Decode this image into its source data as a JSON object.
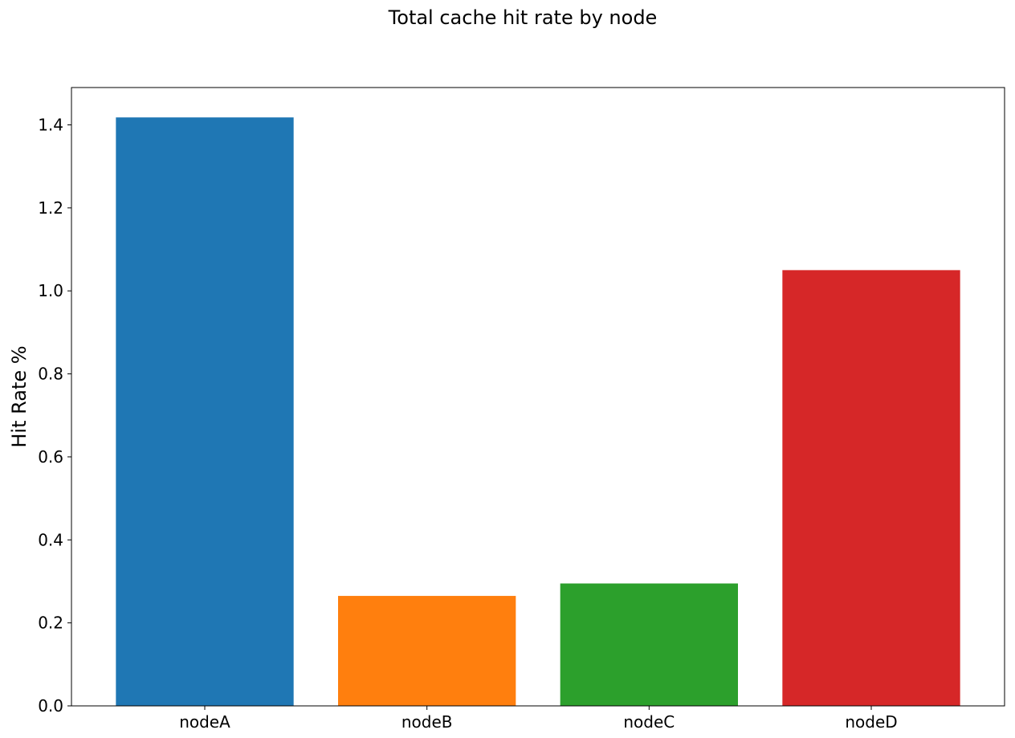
{
  "chart_data": {
    "type": "bar",
    "title": "Total cache hit rate by node",
    "xlabel": "",
    "ylabel": "Hit Rate %",
    "categories": [
      "nodeA",
      "nodeB",
      "nodeC",
      "nodeD"
    ],
    "values": [
      1.418,
      0.265,
      0.295,
      1.05
    ],
    "colors": [
      "#1f77b4",
      "#ff7f0e",
      "#2ca02c",
      "#d62728"
    ],
    "ylim": [
      0,
      1.49
    ],
    "yticks": [
      0.0,
      0.2,
      0.4,
      0.6,
      0.8,
      1.0,
      1.2,
      1.4
    ],
    "ytick_labels": [
      "0.0",
      "0.2",
      "0.4",
      "0.6",
      "0.8",
      "1.0",
      "1.2",
      "1.4"
    ],
    "grid": false,
    "legend": "none"
  }
}
